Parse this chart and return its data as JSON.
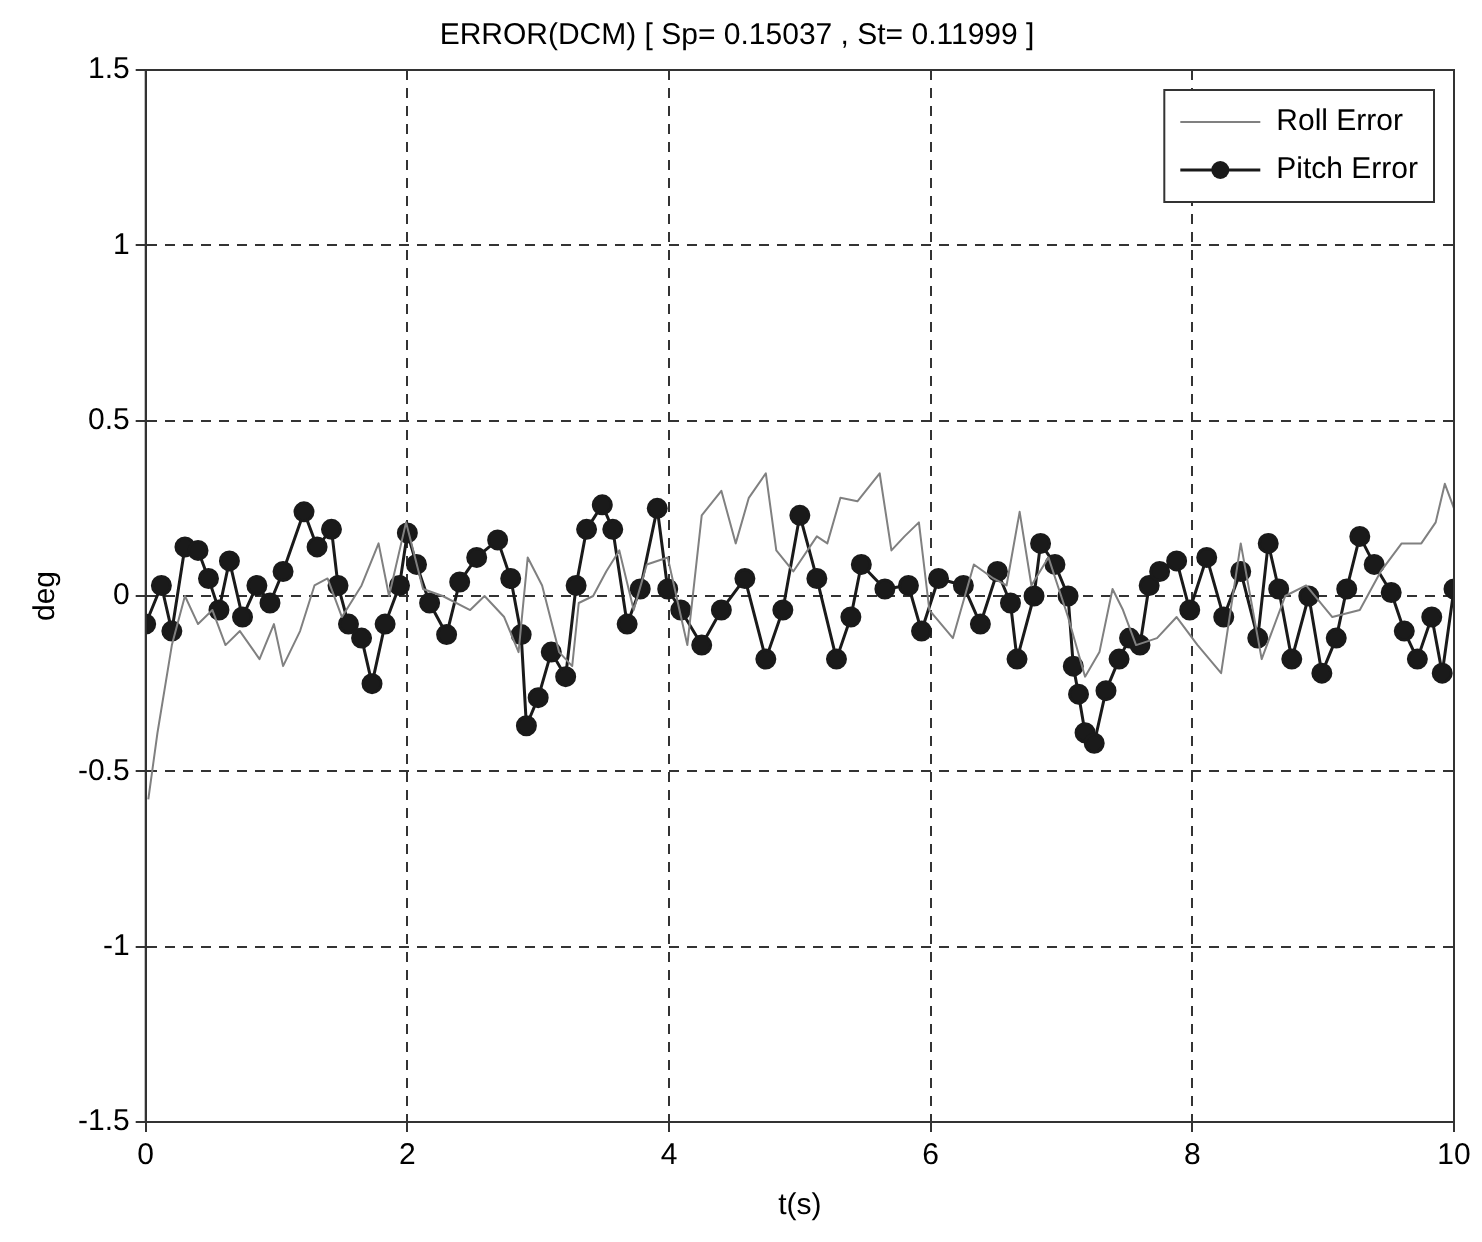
{
  "chart_data": {
    "type": "line",
    "title": "ERROR(DCM) [ Sp= 0.15037 , St= 0.11999 ]",
    "xlabel": "t(s)",
    "ylabel": "deg",
    "xlim": [
      0,
      10
    ],
    "xticks": [
      0,
      2,
      4,
      6,
      8,
      10
    ],
    "ylim": [
      -1.5,
      1.5
    ],
    "yticks": [
      -1.5,
      -1,
      -0.5,
      0,
      0.5,
      1,
      1.5
    ],
    "grid": true,
    "legend": "top right",
    "line_style": "solid",
    "series": [
      {
        "name": "Roll Error",
        "color": "#808080",
        "marker": "none",
        "x": [
          0.02,
          0.09,
          0.2,
          0.3,
          0.4,
          0.51,
          0.61,
          0.72,
          0.87,
          0.98,
          1.05,
          1.18,
          1.29,
          1.39,
          1.5,
          1.65,
          1.78,
          1.86,
          1.99,
          2.12,
          2.27,
          2.48,
          2.59,
          2.74,
          2.85,
          2.92,
          3.03,
          3.16,
          3.26,
          3.31,
          3.42,
          3.52,
          3.62,
          3.73,
          3.83,
          3.99,
          4.14,
          4.25,
          4.4,
          4.51,
          4.61,
          4.74,
          4.82,
          4.95,
          5.13,
          5.21,
          5.31,
          5.44,
          5.61,
          5.7,
          5.8,
          5.91,
          5.99,
          6.17,
          6.33,
          6.48,
          6.58,
          6.68,
          6.77,
          6.9,
          7.05,
          7.18,
          7.29,
          7.39,
          7.47,
          7.57,
          7.73,
          7.88,
          8.04,
          8.22,
          8.37,
          8.53,
          8.71,
          8.87,
          9.07,
          9.28,
          9.44,
          9.6,
          9.75,
          9.86,
          9.93,
          10.0
        ],
        "values": [
          -0.58,
          -0.39,
          -0.14,
          0,
          -0.08,
          -0.04,
          -0.14,
          -0.1,
          -0.18,
          -0.08,
          -0.2,
          -0.1,
          0.03,
          0.05,
          -0.06,
          0.03,
          0.15,
          0,
          0.21,
          0.02,
          0,
          -0.04,
          0,
          -0.06,
          -0.16,
          0.11,
          0.03,
          -0.16,
          -0.2,
          -0.02,
          0,
          0.07,
          0.13,
          -0.04,
          0.09,
          0.11,
          -0.14,
          0.23,
          0.3,
          0.15,
          0.28,
          0.35,
          0.13,
          0.07,
          0.17,
          0.15,
          0.28,
          0.27,
          0.35,
          0.13,
          0.17,
          0.21,
          -0.04,
          -0.12,
          0.09,
          0.05,
          0.03,
          0.24,
          0.03,
          0.11,
          -0.06,
          -0.23,
          -0.16,
          0.02,
          -0.04,
          -0.14,
          -0.12,
          -0.06,
          -0.14,
          -0.22,
          0.15,
          -0.18,
          0,
          0.03,
          -0.06,
          -0.04,
          0.07,
          0.15,
          0.15,
          0.21,
          0.32,
          0.25
        ]
      },
      {
        "name": "Pitch Error",
        "color": "#1a1a1a",
        "marker": "circle",
        "x": [
          0,
          0.12,
          0.2,
          0.3,
          0.4,
          0.48,
          0.56,
          0.64,
          0.74,
          0.85,
          0.95,
          1.05,
          1.21,
          1.31,
          1.42,
          1.47,
          1.55,
          1.65,
          1.73,
          1.83,
          1.94,
          2.0,
          2.07,
          2.17,
          2.3,
          2.4,
          2.53,
          2.69,
          2.79,
          2.87,
          2.91,
          3.0,
          3.1,
          3.21,
          3.29,
          3.37,
          3.49,
          3.57,
          3.68,
          3.78,
          3.91,
          3.99,
          4.09,
          4.25,
          4.4,
          4.58,
          4.74,
          4.87,
          5.0,
          5.13,
          5.28,
          5.39,
          5.47,
          5.65,
          5.83,
          5.93,
          6.06,
          6.25,
          6.38,
          6.51,
          6.61,
          6.66,
          6.79,
          6.84,
          6.95,
          7.05,
          7.09,
          7.13,
          7.18,
          7.25,
          7.34,
          7.44,
          7.52,
          7.6,
          7.67,
          7.75,
          7.88,
          7.98,
          8.11,
          8.24,
          8.37,
          8.5,
          8.58,
          8.66,
          8.76,
          8.89,
          8.99,
          9.1,
          9.18,
          9.28,
          9.39,
          9.52,
          9.62,
          9.72,
          9.83,
          9.91,
          10.0
        ],
        "values": [
          -0.08,
          0.03,
          -0.1,
          0.14,
          0.13,
          0.05,
          -0.04,
          0.1,
          -0.06,
          0.03,
          -0.02,
          0.07,
          0.24,
          0.14,
          0.19,
          0.03,
          -0.08,
          -0.12,
          -0.25,
          -0.08,
          0.03,
          0.18,
          0.09,
          -0.02,
          -0.11,
          0.04,
          0.11,
          0.16,
          0.05,
          -0.11,
          -0.37,
          -0.29,
          -0.16,
          -0.23,
          0.03,
          0.19,
          0.26,
          0.19,
          -0.08,
          0.02,
          0.25,
          0.02,
          -0.04,
          -0.14,
          -0.04,
          0.05,
          -0.18,
          -0.04,
          0.23,
          0.05,
          -0.18,
          -0.06,
          0.09,
          0.02,
          0.03,
          -0.1,
          0.05,
          0.03,
          -0.08,
          0.07,
          -0.02,
          -0.18,
          0,
          0.15,
          0.09,
          0,
          -0.2,
          -0.28,
          -0.39,
          -0.42,
          -0.27,
          -0.18,
          -0.12,
          -0.14,
          0.03,
          0.07,
          0.1,
          -0.04,
          0.11,
          -0.06,
          0.07,
          -0.12,
          0.15,
          0.02,
          -0.18,
          0,
          -0.22,
          -0.12,
          0.02,
          0.17,
          0.09,
          0.01,
          -0.1,
          -0.18,
          -0.06,
          -0.22,
          0.02
        ]
      }
    ]
  }
}
